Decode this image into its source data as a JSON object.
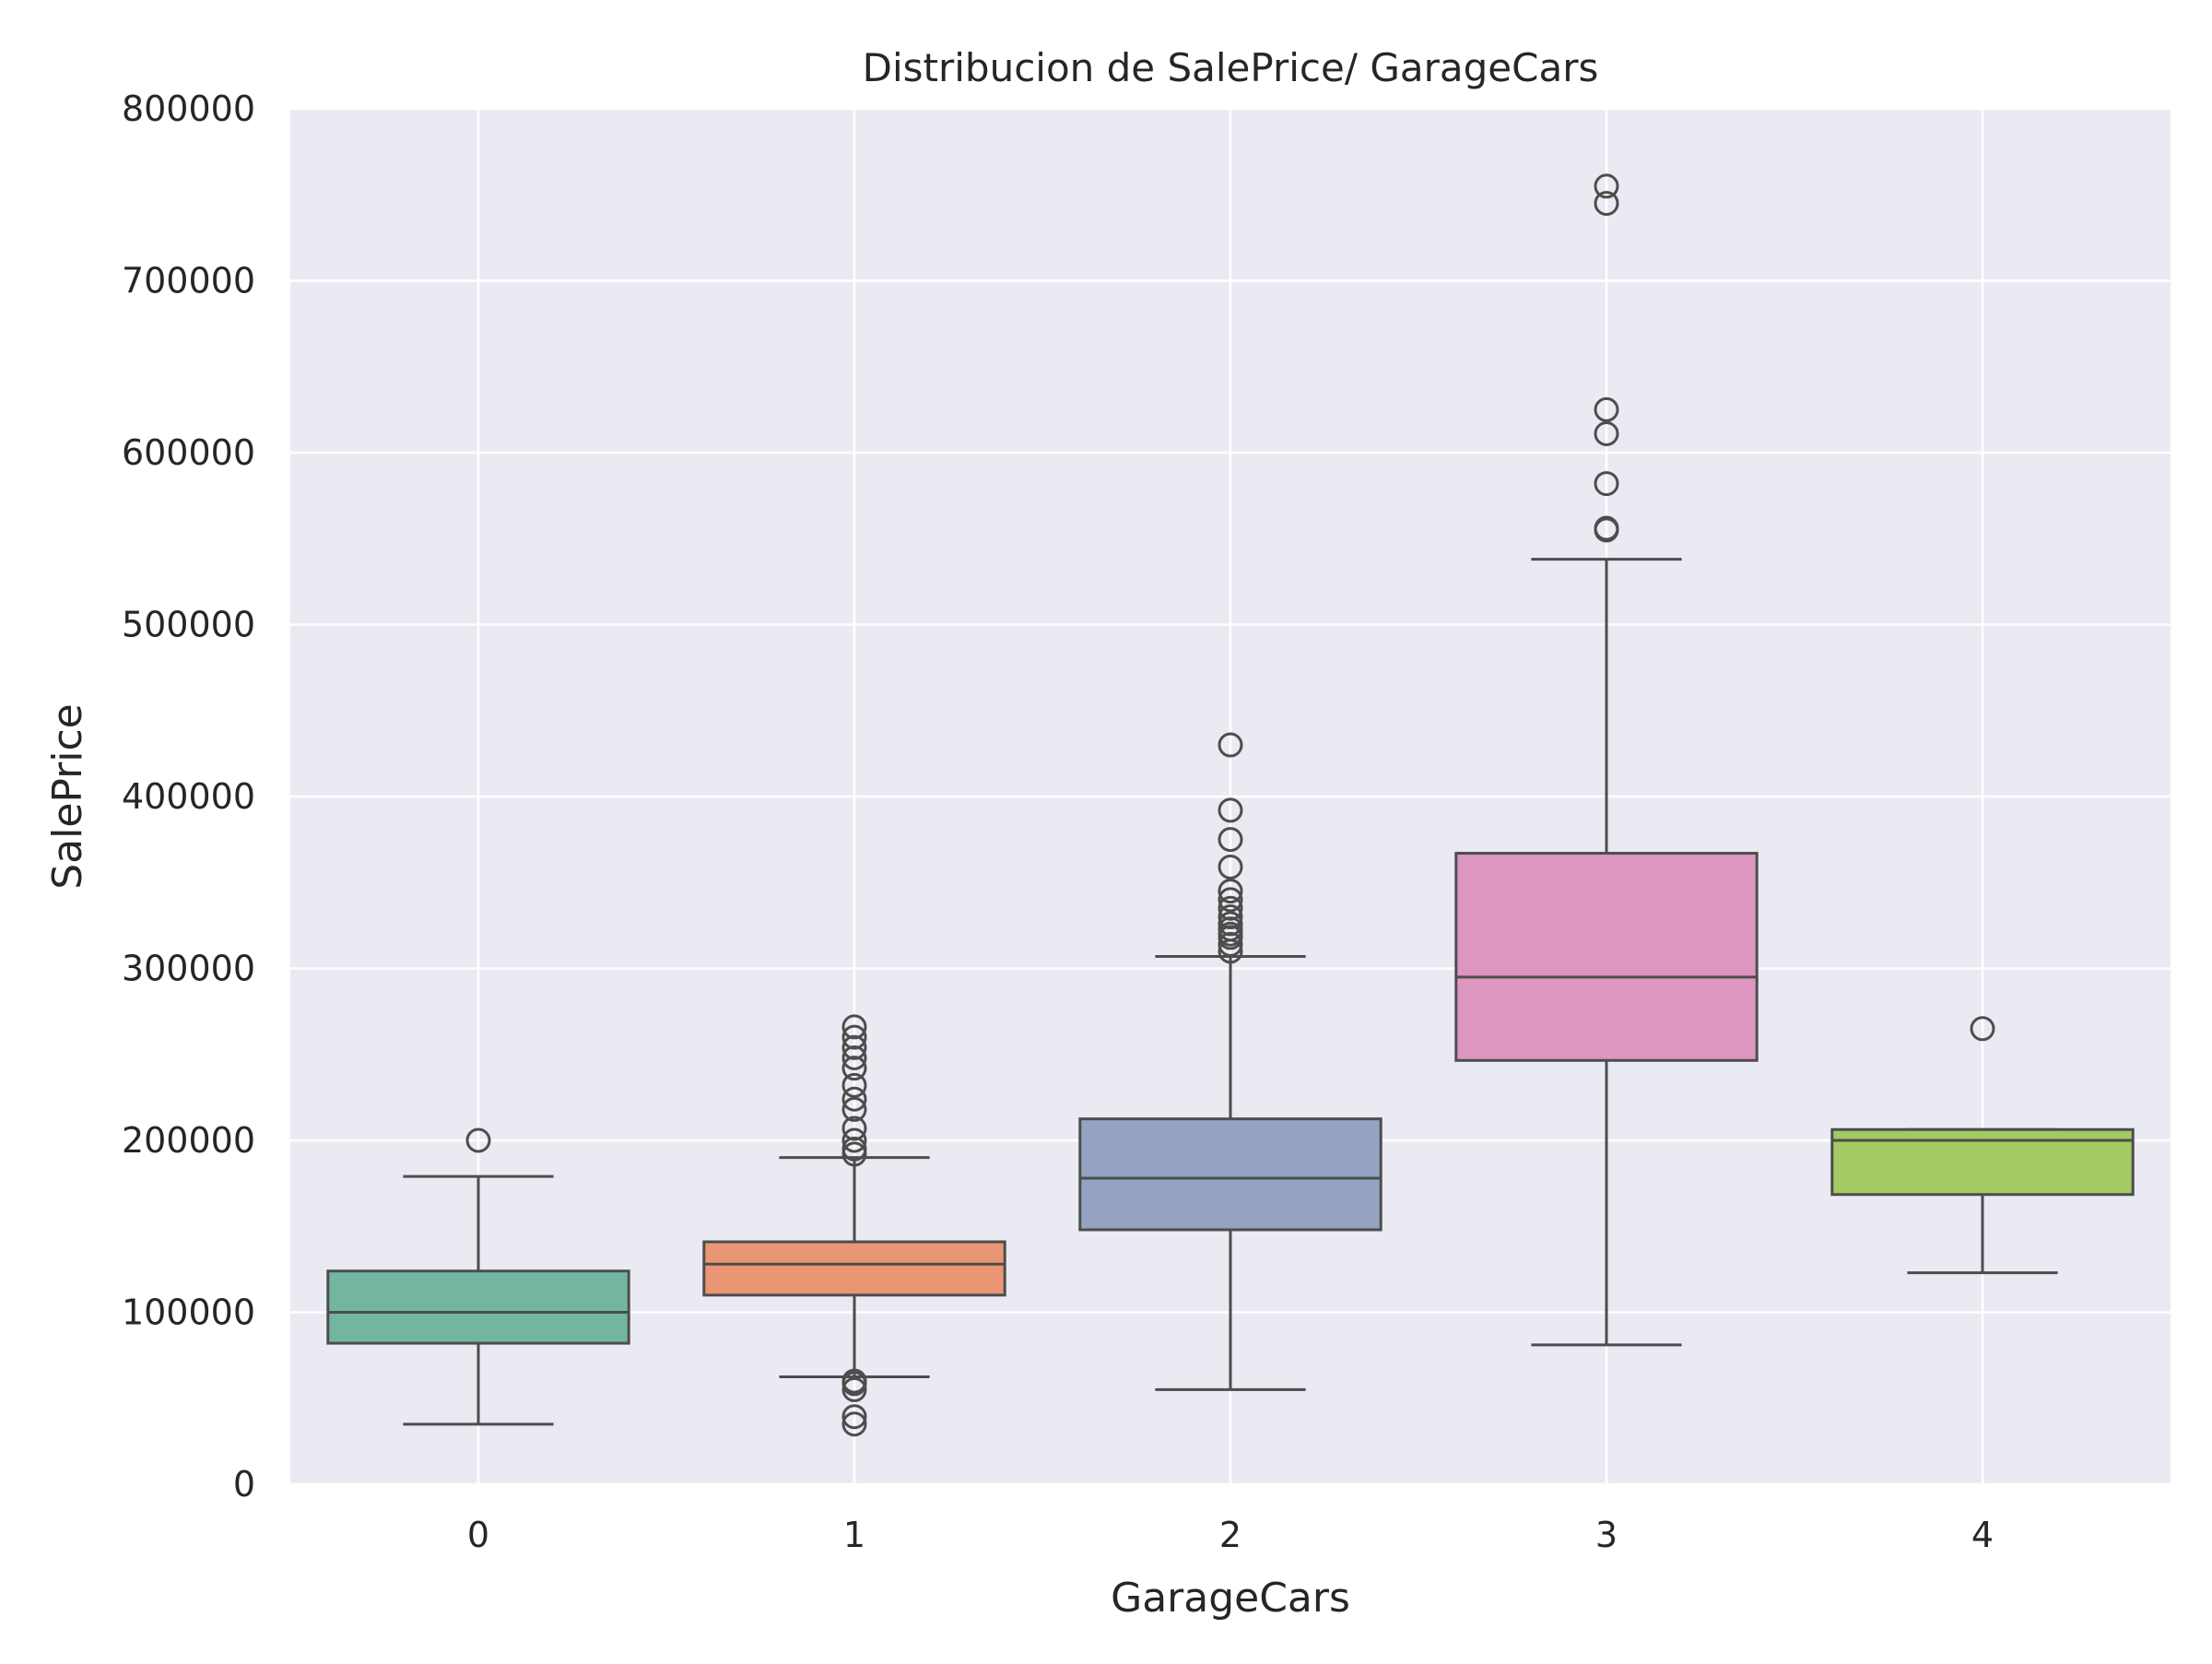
{
  "chart_data": {
    "type": "box",
    "title": "Distribucion de SalePrice/ GarageCars",
    "xlabel": "GarageCars",
    "ylabel": "SalePrice",
    "ylim": [
      0,
      800000
    ],
    "yticks": [
      "0",
      "100000",
      "200000",
      "300000",
      "400000",
      "500000",
      "600000",
      "700000",
      "800000"
    ],
    "ytick_values": [
      0,
      100000,
      200000,
      300000,
      400000,
      500000,
      600000,
      700000,
      800000
    ],
    "categories": [
      "0",
      "1",
      "2",
      "3",
      "4"
    ],
    "grid": true,
    "background": "#eaeaf2",
    "boxes": [
      {
        "category": "0",
        "color": "#72b6a1",
        "whisker_low": 34900,
        "q1": 82000,
        "median": 100000,
        "q3": 124000,
        "whisker_high": 179000,
        "outliers": [
          200000
        ]
      },
      {
        "category": "1",
        "color": "#ea9674",
        "whisker_low": 62500,
        "q1": 110000,
        "median": 128000,
        "q3": 141000,
        "whisker_high": 190000,
        "outliers": [
          35000,
          39300,
          55000,
          58500,
          60000,
          192000,
          195000,
          200000,
          207000,
          218000,
          224000,
          232000,
          242000,
          248000,
          254000,
          260000,
          266000
        ]
      },
      {
        "category": "2",
        "color": "#95a3c3",
        "whisker_low": 55000,
        "q1": 148000,
        "median": 178000,
        "q3": 212500,
        "whisker_high": 307000,
        "outliers": [
          310000,
          314000,
          318000,
          320000,
          323000,
          326000,
          330000,
          335000,
          340000,
          345000,
          359000,
          375000,
          392000,
          430000
        ]
      },
      {
        "category": "3",
        "color": "#dd96c0",
        "whisker_low": 81000,
        "q1": 246500,
        "median": 295000,
        "q3": 367000,
        "whisker_high": 538000,
        "outliers": [
          555000,
          556000,
          582000,
          611000,
          625000,
          745000,
          755000
        ]
      },
      {
        "category": "4",
        "color": "#a3ca63",
        "whisker_low": 123000,
        "q1": 168500,
        "median": 200000,
        "q3": 206300,
        "whisker_high": 206300,
        "outliers": [
          265000
        ]
      }
    ]
  }
}
